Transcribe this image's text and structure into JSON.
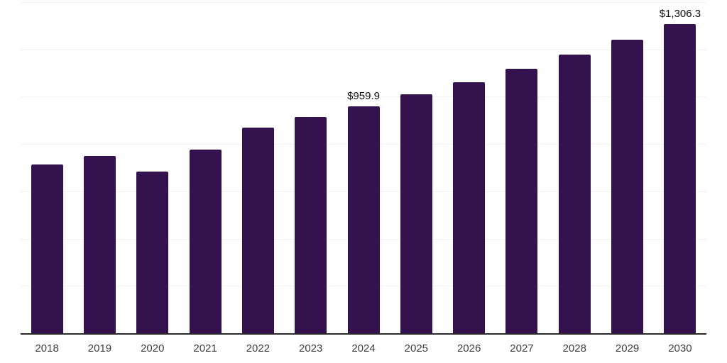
{
  "chart_data": {
    "type": "bar",
    "title": "",
    "xlabel": "",
    "ylabel": "",
    "categories": [
      "2018",
      "2019",
      "2020",
      "2021",
      "2022",
      "2023",
      "2024",
      "2025",
      "2026",
      "2027",
      "2028",
      "2029",
      "2030"
    ],
    "values": [
      713,
      750,
      685,
      776,
      869,
      914,
      959.9,
      1010,
      1062,
      1117,
      1178,
      1241,
      1306.3
    ],
    "data_labels": [
      "",
      "",
      "",
      "",
      "",
      "",
      "$959.9",
      "",
      "",
      "",
      "",
      "",
      "$1,306.3"
    ],
    "ylim": [
      0,
      1400
    ],
    "gridline_values": [
      200,
      400,
      600,
      800,
      1000,
      1200,
      1400
    ],
    "grid": "horizontal-only",
    "y_axis_tick_labels": "none",
    "legend": "none",
    "colors": {
      "bar": "#34124E",
      "axis_line": "#2B2B2B",
      "gridline": "#F2F2F2",
      "tick_label": "#3D3D3D",
      "data_label": "#0D0D0D",
      "background": "#FFFFFF"
    }
  }
}
